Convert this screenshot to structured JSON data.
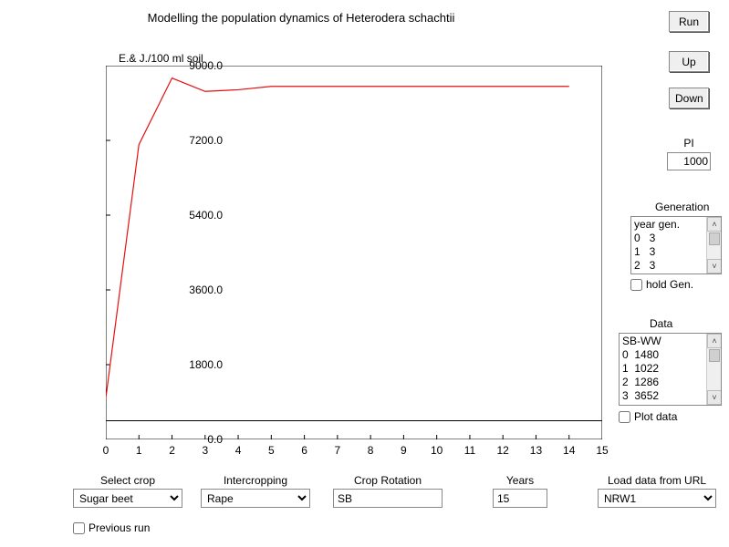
{
  "title": "Modelling the population dynamics of Heterodera schachtii",
  "chart": {
    "type": "line",
    "ylabel": "E.& J./100 ml soil",
    "xlim": [
      0,
      15
    ],
    "ylim": [
      0,
      9000
    ],
    "xtick_step": 1,
    "ytick_step": 1800,
    "ytick_decimals": 1,
    "x": [
      0,
      1,
      2,
      3,
      4,
      5,
      6,
      7,
      8,
      9,
      10,
      11,
      12,
      13,
      14
    ],
    "y": [
      1000,
      7100,
      8700,
      8380,
      8420,
      8500,
      8500,
      8500,
      8500,
      8500,
      8500,
      8500,
      8500,
      8500,
      8500
    ],
    "line_color": "#e51010",
    "line_width": 1.2,
    "hline_y": 450,
    "hline_color": "#000000",
    "background_color": "#ffffff",
    "axis_color": "#000000",
    "tick_len": 5
  },
  "buttons": {
    "run": "Run",
    "up": "Up",
    "down": "Down"
  },
  "pi": {
    "label": "PI",
    "value": "1000"
  },
  "generation": {
    "label": "Generation",
    "header": "year gen.",
    "rows": [
      "0   3",
      "1   3",
      "2   3"
    ]
  },
  "hold_gen": {
    "label": "hold Gen.",
    "checked": false
  },
  "data_list": {
    "label": "Data",
    "header": "SB-WW",
    "rows": [
      "0  1480",
      "1  1022",
      "2  1286",
      "3  3652"
    ]
  },
  "plot_data": {
    "label": "Plot data",
    "checked": false
  },
  "bottom": {
    "select_crop": {
      "label": "Select crop",
      "value": "Sugar beet"
    },
    "intercropping": {
      "label": "Intercropping",
      "value": "Rape"
    },
    "crop_rotation": {
      "label": "Crop Rotation",
      "value": "SB"
    },
    "years": {
      "label": "Years",
      "value": "15"
    },
    "load_url": {
      "label": "Load data from URL",
      "value": "NRW1"
    }
  },
  "previous_run": {
    "label": "Previous run",
    "checked": false
  }
}
